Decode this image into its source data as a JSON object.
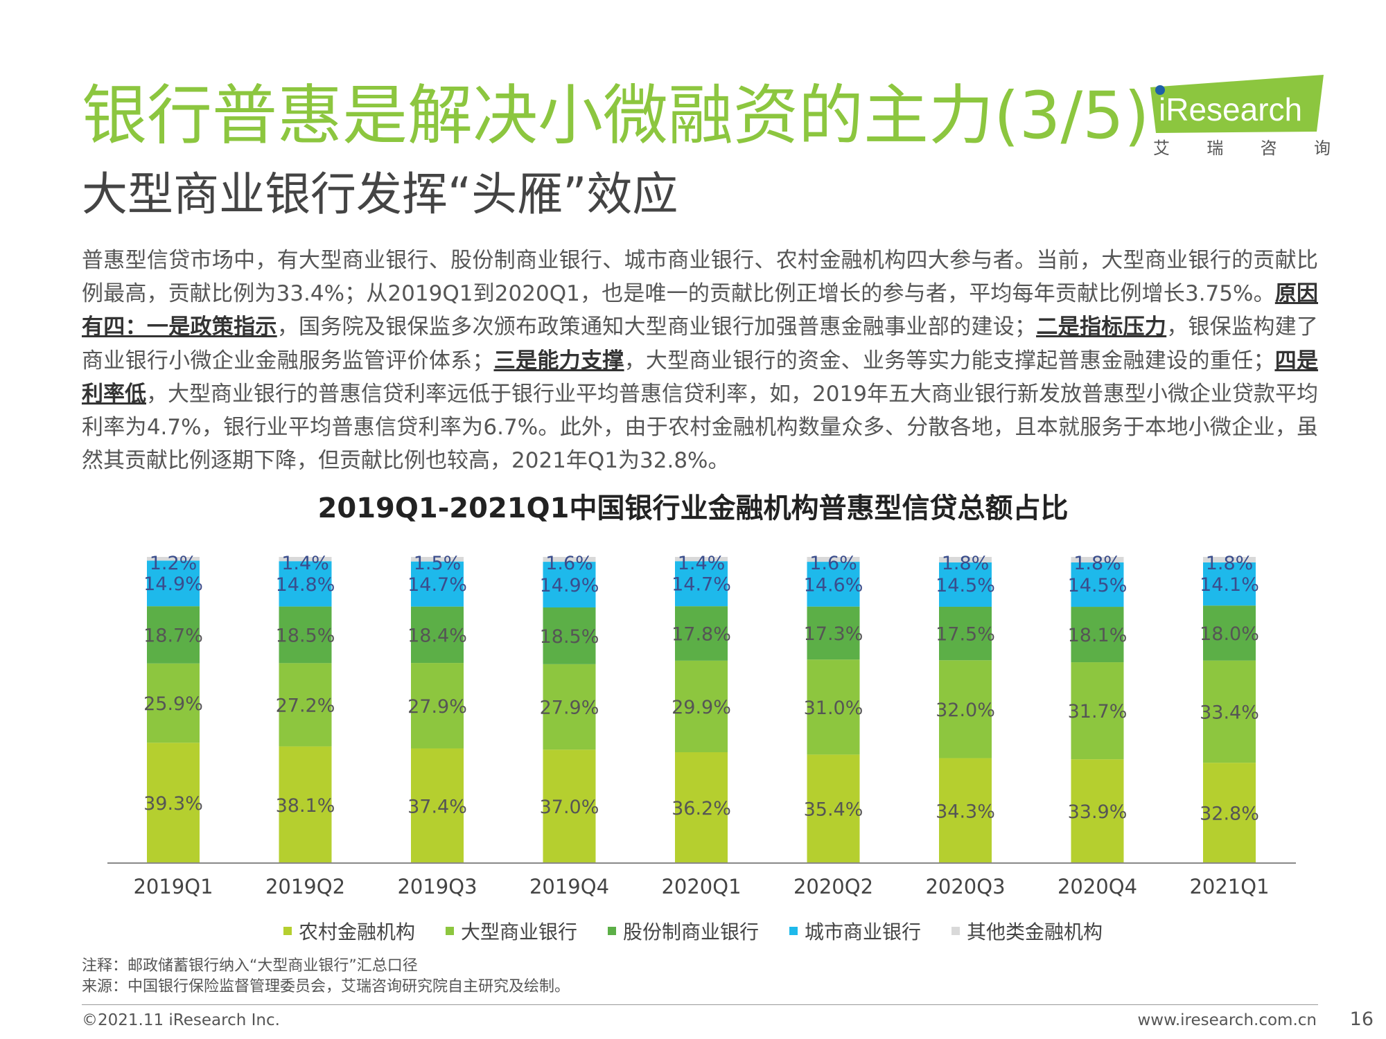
{
  "header": {
    "title": "银行普惠是解决小微融资的主力(3/5)",
    "subtitle": "大型商业银行发挥“头雁”效应",
    "logo_text": "iResearch",
    "logo_cn": [
      "艾",
      "瑞",
      "咨",
      "询"
    ]
  },
  "intro": {
    "p1": "普惠型信贷市场中，有大型商业银行、股份制商业银行、城市商业银行、农村金融机构四大参与者。当前，大型商业银行的贡献比例最高，贡献比例为33.4%；从2019Q1到2020Q1，也是唯一的贡献比例正增长的参与者，平均每年贡献比例增长3.75%。",
    "reasons_heading": "原因有四：一是政策指示",
    "p2": "，国务院及银保监多次颁布政策通知大型商业银行加强普惠金融事业部的建设；",
    "reason2": "二是指标压力",
    "p3": "，银保监构建了商业银行小微企业金融服务监管评价体系；",
    "reason3": "三是能力支撑",
    "p4": "，大型商业银行的资金、业务等实力能支撑起普惠金融建设的重任；",
    "reason4": "四是利率低",
    "p5": "，大型商业银行的普惠信贷利率远低于银行业平均普惠信贷利率，如，2019年五大商业银行新发放普惠型小微企业贷款平均利率为4.7%，银行业平均普惠信贷利率为6.7%。此外，由于农村金融机构数量众多、分散各地，且本就服务于本地小微企业，虽然其贡献比例逐期下降，但贡献比例也较高，2021年Q1为32.8%。"
  },
  "chart_data": {
    "type": "bar",
    "stacked": true,
    "title": "2019Q1-2021Q1中国银行业金融机构普惠型信贷总额占比",
    "categories": [
      "2019Q1",
      "2019Q2",
      "2019Q3",
      "2019Q4",
      "2020Q1",
      "2020Q2",
      "2020Q3",
      "2020Q4",
      "2021Q1"
    ],
    "unit": "%",
    "ylim": [
      0,
      100
    ],
    "series": [
      {
        "name": "农村金融机构",
        "color": "#b5cf2f",
        "values": [
          39.3,
          38.1,
          37.4,
          37.0,
          36.2,
          35.4,
          34.3,
          33.9,
          32.8
        ]
      },
      {
        "name": "大型商业银行",
        "color": "#8dc63f",
        "values": [
          25.9,
          27.2,
          27.9,
          27.9,
          29.9,
          31.0,
          32.0,
          31.7,
          33.4
        ]
      },
      {
        "name": "股份制商业银行",
        "color": "#5caf47",
        "values": [
          18.7,
          18.5,
          18.4,
          18.5,
          17.8,
          17.3,
          17.5,
          18.1,
          18.0
        ]
      },
      {
        "name": "城市商业银行",
        "color": "#1eb9eb",
        "values": [
          14.9,
          14.8,
          14.7,
          14.9,
          14.7,
          14.6,
          14.5,
          14.5,
          14.1
        ]
      },
      {
        "name": "其他类金融机构",
        "color": "#d9d9d9",
        "values": [
          1.2,
          1.4,
          1.5,
          1.6,
          1.4,
          1.6,
          1.8,
          1.8,
          1.8
        ]
      }
    ],
    "legend_position": "bottom",
    "grid": false
  },
  "notes": {
    "note": "注释：邮政储蓄银行纳入“大型商业银行”汇总口径",
    "source": "来源：中国银行保险监督管理委员会，艾瑞咨询研究院自主研究及绘制。"
  },
  "footer": {
    "copyright": "©2021.11 iResearch Inc.",
    "website": "www.iresearch.com.cn",
    "page": "16"
  }
}
